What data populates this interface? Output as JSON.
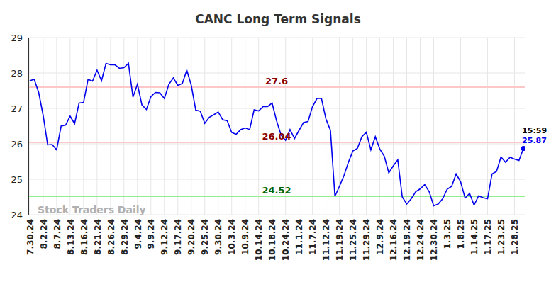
{
  "chart_data": {
    "type": "line",
    "title": "CANC Long Term Signals",
    "watermark": "Stock Traders Daily",
    "categories": [
      "7.30.24",
      null,
      null,
      "8.2.24",
      null,
      null,
      "8.7.24",
      null,
      null,
      "8.13.24",
      null,
      null,
      "8.16.24",
      null,
      null,
      "8.21.24",
      null,
      null,
      "8.26.24",
      null,
      null,
      "8.29.24",
      null,
      null,
      "9.4.24",
      null,
      null,
      "9.9.24",
      null,
      null,
      "9.12.24",
      null,
      null,
      "9.17.24",
      null,
      null,
      "9.20.24",
      null,
      null,
      "9.25.24",
      null,
      null,
      "9.30.24",
      null,
      null,
      "10.3.24",
      null,
      null,
      "10.9.24",
      null,
      null,
      "10.14.24",
      null,
      null,
      "10.18.24",
      null,
      null,
      "10.24.24",
      null,
      null,
      "11.1.24",
      null,
      null,
      "11.7.24",
      null,
      null,
      "11.12.24",
      null,
      null,
      "11.19.24",
      null,
      null,
      "11.25.24",
      null,
      null,
      "11.29.24",
      null,
      null,
      "12.9.24",
      null,
      null,
      "12.16.24",
      null,
      null,
      "12.19.24",
      null,
      null,
      "12.24.24",
      null,
      null,
      "12.30.24",
      null,
      null,
      "1.3.25",
      null,
      null,
      "1.8.25",
      null,
      null,
      "1.14.25",
      null,
      null,
      "1.17.25",
      null,
      null,
      "1.23.25",
      null,
      null,
      "1.28.25",
      null,
      null
    ],
    "series": [
      {
        "name": "CANC",
        "color": "#0000ee",
        "values": [
          27.78,
          27.82,
          27.45,
          26.8,
          25.97,
          25.98,
          25.83,
          26.5,
          26.53,
          26.78,
          26.57,
          27.15,
          27.17,
          27.82,
          27.77,
          28.08,
          27.78,
          28.27,
          28.23,
          28.23,
          28.13,
          28.15,
          28.27,
          27.32,
          27.68,
          27.1,
          26.97,
          27.33,
          27.45,
          27.44,
          27.28,
          27.68,
          27.86,
          27.65,
          27.7,
          28.08,
          27.65,
          26.95,
          26.92,
          26.58,
          26.75,
          26.82,
          26.9,
          26.68,
          26.65,
          26.32,
          26.27,
          26.4,
          26.45,
          26.4,
          26.96,
          26.93,
          27.05,
          27.05,
          27.15,
          26.65,
          26.25,
          26.1,
          26.4,
          26.15,
          26.38,
          26.6,
          26.63,
          27.05,
          27.28,
          27.28,
          26.7,
          26.38,
          24.52,
          24.8,
          25.1,
          25.48,
          25.8,
          25.87,
          26.2,
          26.33,
          25.83,
          26.2,
          25.85,
          25.65,
          25.18,
          25.38,
          25.55,
          24.5,
          24.3,
          24.45,
          24.65,
          24.73,
          24.85,
          24.65,
          24.25,
          24.3,
          24.45,
          24.72,
          24.8,
          25.15,
          24.93,
          24.47,
          24.6,
          24.27,
          24.53,
          24.48,
          24.45,
          25.15,
          25.22,
          25.63,
          25.48,
          25.62,
          25.57,
          25.53,
          25.87
        ]
      }
    ],
    "reference_lines": [
      {
        "value": 27.6,
        "color": "#ffc8c8",
        "text_color": "#8b0000"
      },
      {
        "value": 26.04,
        "color": "#ffc8c8",
        "text_color": "#8b0000"
      },
      {
        "value": 24.52,
        "color": "#90ee90",
        "text_color": "#006400"
      }
    ],
    "annotations": [
      "15:59",
      "25.87"
    ],
    "ylim": [
      24,
      29
    ],
    "yticks": [
      24,
      25,
      26,
      27,
      28,
      29
    ],
    "grid": true
  }
}
